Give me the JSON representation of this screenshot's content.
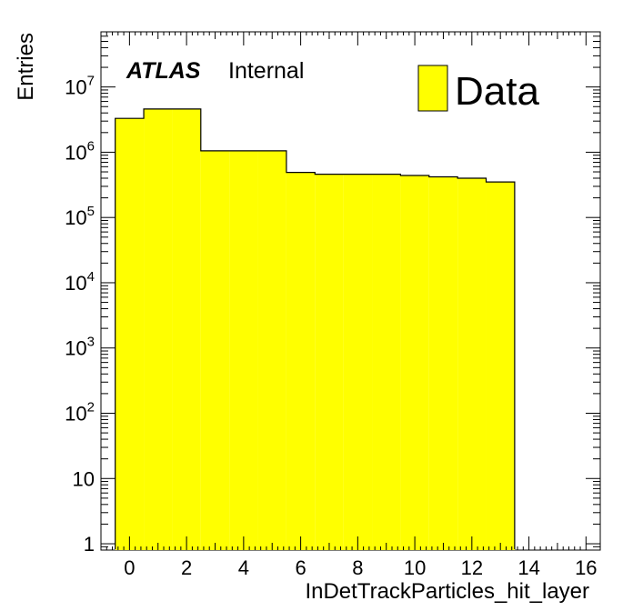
{
  "chart_data": {
    "type": "bar",
    "histogram": true,
    "bin_edges": [
      -0.5,
      0.5,
      1.5,
      2.5,
      3.5,
      4.5,
      5.5,
      6.5,
      7.5,
      8.5,
      9.5,
      10.5,
      11.5,
      12.5,
      13.5
    ],
    "values": [
      3300000,
      4600000,
      4600000,
      1050000,
      1050000,
      1050000,
      490000,
      460000,
      460000,
      460000,
      440000,
      420000,
      400000,
      350000
    ],
    "xlabel": "InDetTrackParticles_hit_layer",
    "ylabel": "Entries",
    "xlim": [
      -1,
      16.5
    ],
    "ylim": [
      0.8,
      70000000
    ],
    "yscale": "log",
    "x_ticks": [
      "0",
      "2",
      "4",
      "6",
      "8",
      "10",
      "12",
      "14",
      "16"
    ],
    "y_ticks": [
      {
        "base": "1",
        "exp": ""
      },
      {
        "base": "10",
        "exp": ""
      },
      {
        "base": "10",
        "exp": "2"
      },
      {
        "base": "10",
        "exp": "3"
      },
      {
        "base": "10",
        "exp": "4"
      },
      {
        "base": "10",
        "exp": "5"
      },
      {
        "base": "10",
        "exp": "6"
      },
      {
        "base": "10",
        "exp": "7"
      }
    ],
    "grid": false,
    "fill_color": "#ffff00",
    "line_color": "#000000",
    "legend": {
      "label": "Data",
      "position": "top-right"
    },
    "atlas_label": {
      "bold": "ATLAS",
      "text": "Internal"
    }
  }
}
